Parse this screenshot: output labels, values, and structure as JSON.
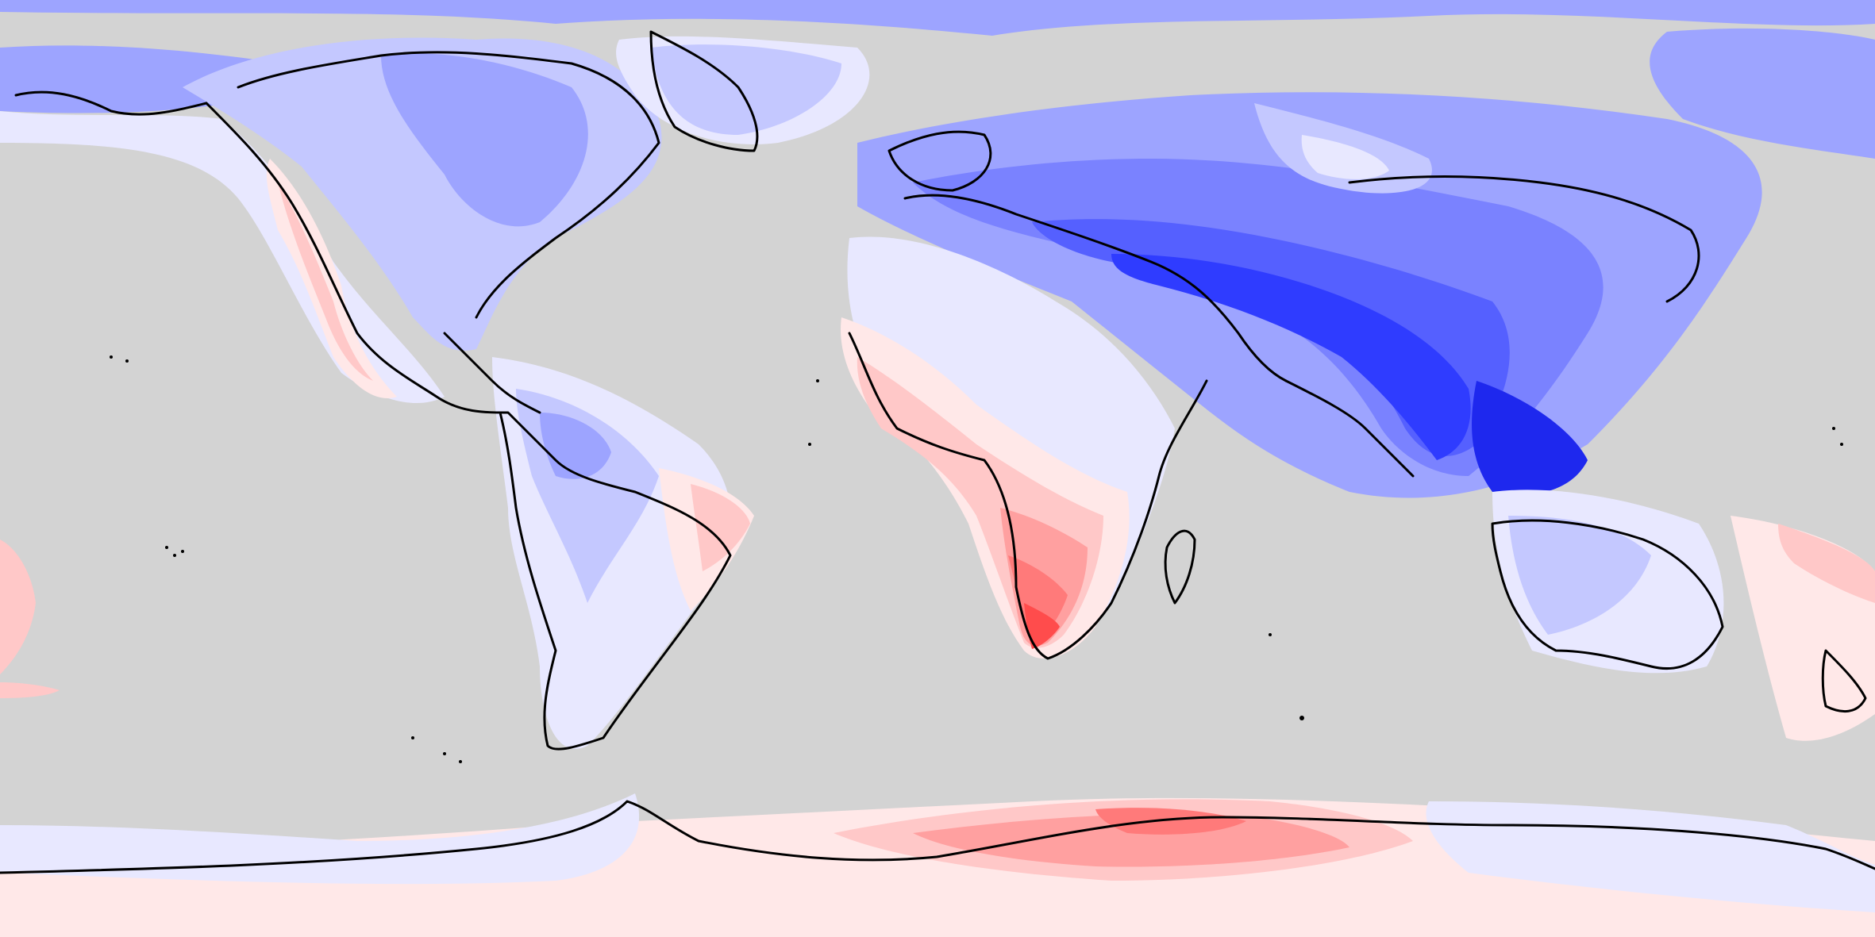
{
  "map": {
    "projection": "equirectangular",
    "extent": "global",
    "legend": "none",
    "labels": "none",
    "ocean_mask_color": "#d3d3d3",
    "coastline_color": "#000000",
    "color_scale": {
      "kind": "diverging",
      "negative_colors": [
        "#e8e8ff",
        "#c4c8ff",
        "#9da4ff",
        "#7a82ff",
        "#5560ff",
        "#2f3cff",
        "#1e28ee"
      ],
      "positive_colors": [
        "#ffe8e8",
        "#ffc8c8",
        "#ffa0a0",
        "#ff7a7a",
        "#ff4c4c"
      ]
    }
  }
}
